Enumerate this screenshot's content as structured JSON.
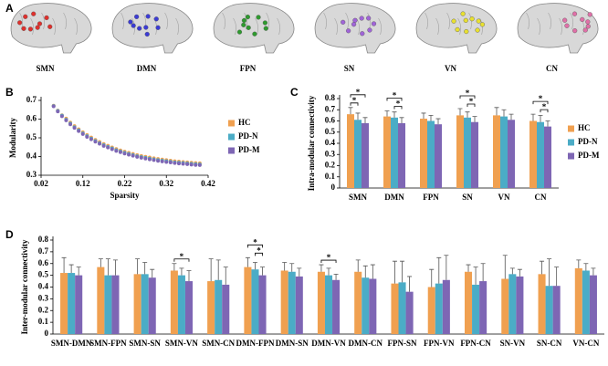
{
  "brain_panel": {
    "panel_label": "A",
    "networks": [
      {
        "name": "SMN",
        "color": "#e0302c"
      },
      {
        "name": "DMN",
        "color": "#3b3bd6"
      },
      {
        "name": "FPN",
        "color": "#2e9a2e"
      },
      {
        "name": "SN",
        "color": "#a064d8"
      },
      {
        "name": "VN",
        "color": "#e8e030"
      },
      {
        "name": "CN",
        "color": "#e070a8"
      }
    ]
  },
  "chart_data": [
    {
      "type": "scatter",
      "panel_label": "B",
      "x_label": "Sparsity",
      "y_label": "Modularity",
      "x": [
        0.05,
        0.06,
        0.07,
        0.08,
        0.09,
        0.1,
        0.11,
        0.12,
        0.13,
        0.14,
        0.15,
        0.16,
        0.17,
        0.18,
        0.19,
        0.2,
        0.21,
        0.22,
        0.23,
        0.24,
        0.25,
        0.26,
        0.27,
        0.28,
        0.29,
        0.3,
        0.31,
        0.32,
        0.33,
        0.34,
        0.35,
        0.36,
        0.37,
        0.38,
        0.39,
        0.4
      ],
      "series": [
        {
          "name": "HC",
          "color": "#f0a050",
          "values": [
            0.672,
            0.646,
            0.621,
            0.603,
            0.582,
            0.563,
            0.546,
            0.53,
            0.515,
            0.502,
            0.489,
            0.478,
            0.467,
            0.458,
            0.449,
            0.44,
            0.433,
            0.426,
            0.42,
            0.414,
            0.408,
            0.403,
            0.399,
            0.395,
            0.391,
            0.387,
            0.384,
            0.381,
            0.378,
            0.375,
            0.373,
            0.371,
            0.369,
            0.367,
            0.365,
            0.364
          ]
        },
        {
          "name": "PD-N",
          "color": "#4bacc6",
          "values": [
            0.67,
            0.644,
            0.619,
            0.597,
            0.576,
            0.557,
            0.54,
            0.524,
            0.509,
            0.496,
            0.483,
            0.472,
            0.461,
            0.452,
            0.443,
            0.434,
            0.427,
            0.42,
            0.414,
            0.408,
            0.402,
            0.397,
            0.393,
            0.389,
            0.385,
            0.381,
            0.378,
            0.375,
            0.372,
            0.369,
            0.367,
            0.365,
            0.363,
            0.361,
            0.359,
            0.358
          ]
        },
        {
          "name": "PD-M",
          "color": "#7e66b4",
          "values": [
            0.668,
            0.641,
            0.615,
            0.593,
            0.572,
            0.553,
            0.536,
            0.52,
            0.505,
            0.492,
            0.479,
            0.468,
            0.457,
            0.448,
            0.439,
            0.43,
            0.423,
            0.416,
            0.41,
            0.404,
            0.398,
            0.393,
            0.389,
            0.385,
            0.381,
            0.377,
            0.374,
            0.371,
            0.368,
            0.365,
            0.363,
            0.361,
            0.359,
            0.357,
            0.355,
            0.354
          ]
        }
      ],
      "xlim": [
        0.02,
        0.42
      ],
      "xticks": [
        0.02,
        0.12,
        0.22,
        0.32,
        0.42
      ],
      "ylim": [
        0.3,
        0.7
      ],
      "yticks": [
        0.3,
        0.4,
        0.5,
        0.6,
        0.7
      ],
      "legend": "right"
    },
    {
      "type": "bar",
      "panel_label": "C",
      "y_label": "Intra-modular connectivity",
      "categories": [
        "SMN",
        "DMN",
        "FPN",
        "SN",
        "VN",
        "CN"
      ],
      "series": [
        {
          "name": "HC",
          "color": "#f0a050",
          "values": [
            0.66,
            0.64,
            0.62,
            0.65,
            0.65,
            0.6
          ],
          "errors": [
            0.06,
            0.05,
            0.05,
            0.06,
            0.07,
            0.06
          ]
        },
        {
          "name": "PD-N",
          "color": "#4bacc6",
          "values": [
            0.61,
            0.63,
            0.6,
            0.63,
            0.64,
            0.59
          ],
          "errors": [
            0.06,
            0.05,
            0.05,
            0.05,
            0.06,
            0.06
          ]
        },
        {
          "name": "PD-M",
          "color": "#7e66b4",
          "values": [
            0.58,
            0.58,
            0.57,
            0.59,
            0.61,
            0.55
          ],
          "errors": [
            0.05,
            0.05,
            0.05,
            0.05,
            0.05,
            0.05
          ]
        }
      ],
      "significance": [
        {
          "category": 0,
          "groups": [
            0,
            1
          ],
          "label": "*"
        },
        {
          "category": 0,
          "groups": [
            0,
            2
          ],
          "label": "*"
        },
        {
          "category": 1,
          "groups": [
            1,
            2
          ],
          "label": "*"
        },
        {
          "category": 1,
          "groups": [
            0,
            2
          ],
          "label": "*"
        },
        {
          "category": 3,
          "groups": [
            1,
            2
          ],
          "label": "*"
        },
        {
          "category": 3,
          "groups": [
            0,
            2
          ],
          "label": "*"
        },
        {
          "category": 5,
          "groups": [
            1,
            2
          ],
          "label": "*"
        },
        {
          "category": 5,
          "groups": [
            0,
            2
          ],
          "label": "*"
        }
      ],
      "ylim": [
        0,
        0.8
      ],
      "yticks": [
        0,
        0.1,
        0.2,
        0.3,
        0.4,
        0.5,
        0.6,
        0.7,
        0.8
      ],
      "legend": "right"
    },
    {
      "type": "bar",
      "panel_label": "D",
      "y_label": "Inter-modular connectivity",
      "categories": [
        "SMN-DMN",
        "SMN-FPN",
        "SMN-SN",
        "SMN-VN",
        "SMN-CN",
        "DMN-FPN",
        "DMN-SN",
        "DMN-VN",
        "DMN-CN",
        "FPN-SN",
        "FPN-VN",
        "FPN-CN",
        "SN-VN",
        "SN-CN",
        "VN-CN"
      ],
      "series": [
        {
          "name": "HC",
          "color": "#f0a050",
          "values": [
            0.52,
            0.57,
            0.51,
            0.54,
            0.45,
            0.57,
            0.54,
            0.53,
            0.53,
            0.43,
            0.4,
            0.53,
            0.47,
            0.51,
            0.56
          ],
          "errors": [
            0.13,
            0.07,
            0.13,
            0.06,
            0.19,
            0.08,
            0.07,
            0.06,
            0.1,
            0.19,
            0.15,
            0.06,
            0.2,
            0.11,
            0.07
          ]
        },
        {
          "name": "PD-N",
          "color": "#4bacc6",
          "values": [
            0.52,
            0.5,
            0.51,
            0.5,
            0.46,
            0.55,
            0.53,
            0.5,
            0.48,
            0.44,
            0.43,
            0.42,
            0.51,
            0.41,
            0.54
          ],
          "errors": [
            0.07,
            0.14,
            0.1,
            0.06,
            0.17,
            0.06,
            0.07,
            0.06,
            0.1,
            0.18,
            0.22,
            0.15,
            0.05,
            0.23,
            0.06
          ]
        },
        {
          "name": "PD-M",
          "color": "#7e66b4",
          "values": [
            0.5,
            0.5,
            0.48,
            0.45,
            0.42,
            0.5,
            0.49,
            0.46,
            0.47,
            0.36,
            0.46,
            0.45,
            0.49,
            0.41,
            0.5
          ],
          "errors": [
            0.07,
            0.13,
            0.07,
            0.09,
            0.15,
            0.07,
            0.07,
            0.05,
            0.12,
            0.13,
            0.21,
            0.15,
            0.06,
            0.16,
            0.06
          ]
        }
      ],
      "significance": [
        {
          "category": 3,
          "groups": [
            0,
            2
          ],
          "label": "*"
        },
        {
          "category": 5,
          "groups": [
            1,
            2
          ],
          "label": "*"
        },
        {
          "category": 5,
          "groups": [
            0,
            2
          ],
          "label": "*"
        },
        {
          "category": 7,
          "groups": [
            0,
            2
          ],
          "label": "*"
        }
      ],
      "ylim": [
        0,
        0.8
      ],
      "yticks": [
        0,
        0.1,
        0.2,
        0.3,
        0.4,
        0.5,
        0.6,
        0.7,
        0.8
      ]
    }
  ]
}
